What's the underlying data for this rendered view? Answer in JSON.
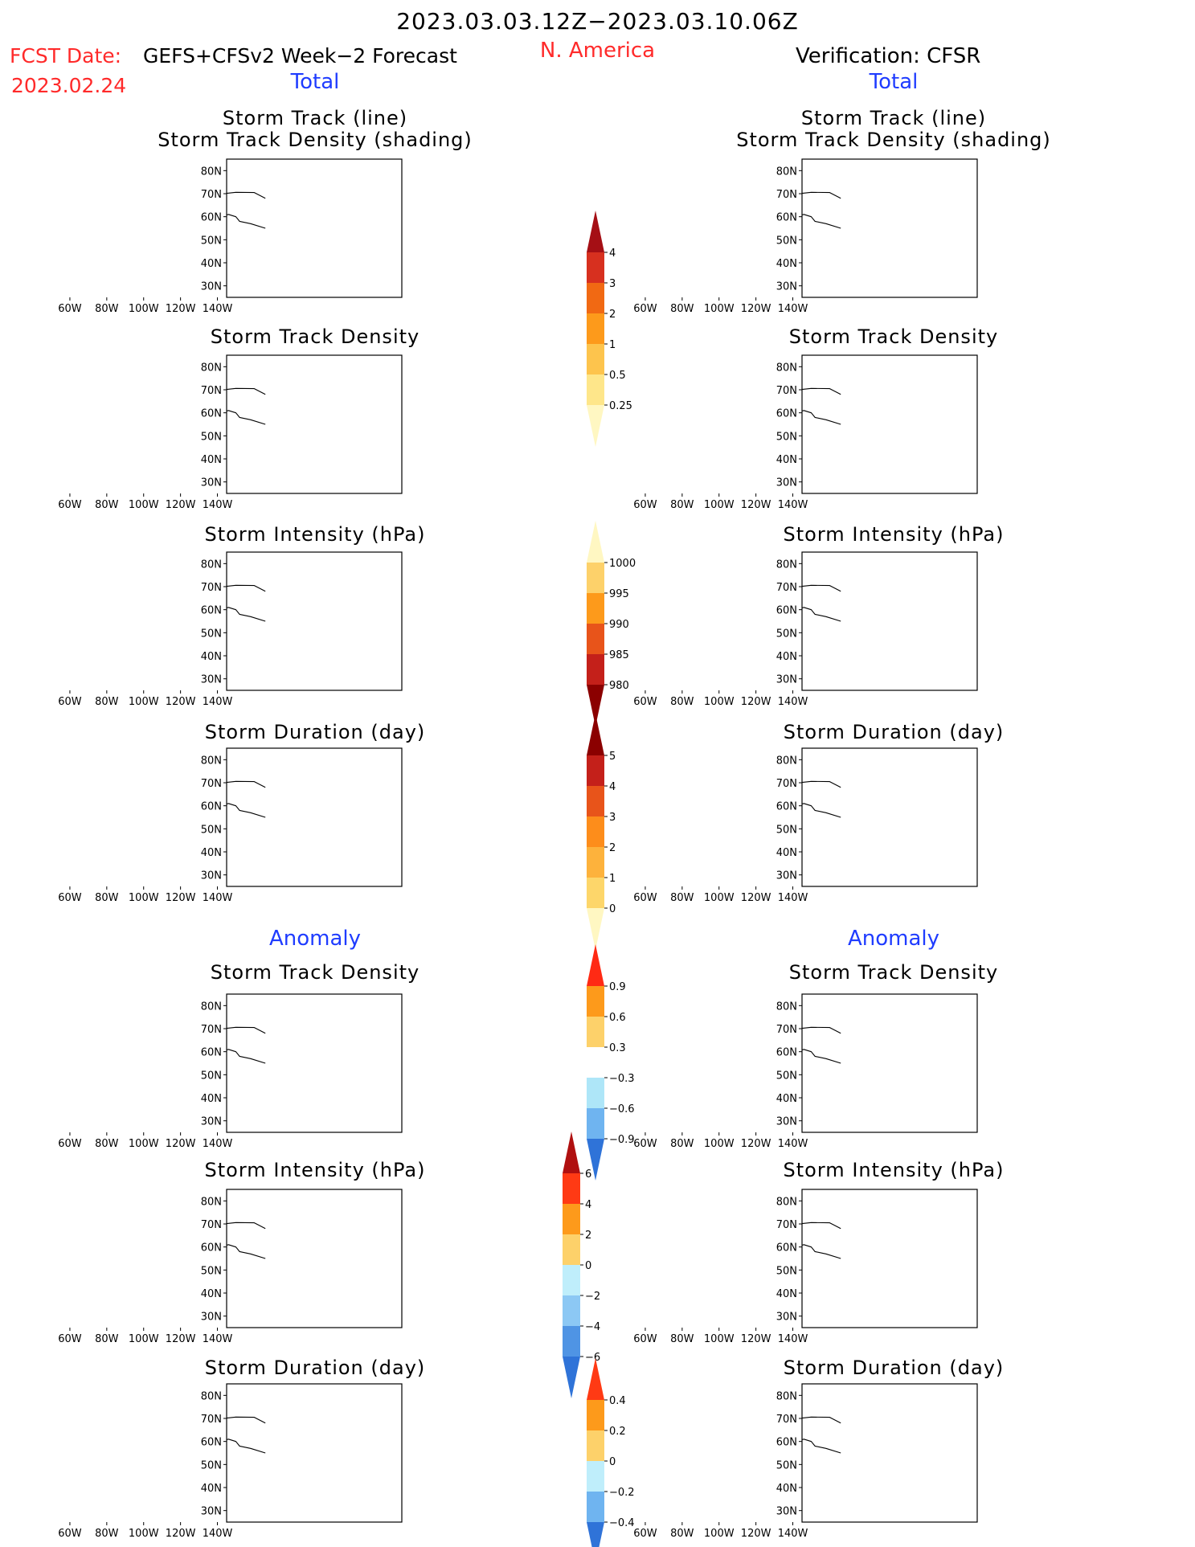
{
  "header": {
    "date_range": "2023.03.03.12Z−2023.03.10.06Z",
    "fcst_label": "FCST Date:",
    "fcst_desc": "GEFS+CFSv2 Week−2 Forecast",
    "fcst_date": "2023.02.24",
    "region": "N. America",
    "verification": "Verification: CFSR"
  },
  "sections": {
    "total": "Total",
    "anomaly": "Anomaly"
  },
  "axes": {
    "lat_labels": [
      "80N",
      "70N",
      "60N",
      "50N",
      "40N",
      "30N"
    ],
    "lon_labels": [
      "140W",
      "120W",
      "100W",
      "80W",
      "60W"
    ]
  },
  "panels": {
    "left": [
      {
        "title": "Storm Track (line)",
        "title2": "Storm Track Density (shading)",
        "field": "track_lines"
      },
      {
        "title": "Storm Track Density",
        "field": "density_fcst"
      },
      {
        "title": "Storm Intensity (hPa)",
        "field": "intensity_fcst"
      },
      {
        "title": "Storm Duration (day)",
        "field": "duration_fcst"
      },
      {
        "title": "Storm Track Density",
        "field": "density_anom_fcst"
      },
      {
        "title": "Storm Intensity (hPa)",
        "field": "intensity_anom_fcst"
      },
      {
        "title": "Storm Duration (day)",
        "field": "duration_anom_fcst"
      }
    ],
    "right": [
      {
        "title": "Storm Track (line)",
        "title2": "Storm Track Density (shading)",
        "field": "track_lines_obs"
      },
      {
        "title": "Storm Track Density",
        "field": "density_obs"
      },
      {
        "title": "Storm Intensity (hPa)",
        "field": "intensity_obs"
      },
      {
        "title": "Storm Duration (day)",
        "field": "duration_obs"
      },
      {
        "title": "Storm Track Density",
        "field": "density_anom_obs"
      },
      {
        "title": "Storm Intensity (hPa)",
        "field": "intensity_anom_obs"
      },
      {
        "title": "Storm Duration (day)",
        "field": "duration_anom_obs"
      }
    ]
  },
  "colorbars": {
    "density": {
      "labels": [
        "4",
        "3",
        "2",
        "1",
        "0.5",
        "0.25"
      ],
      "colors": [
        "#a50f15",
        "#d7301f",
        "#f16913",
        "#fd9a1b",
        "#fdc44d",
        "#fee68a",
        "#fff7c2"
      ]
    },
    "intensity": {
      "labels": [
        "1000",
        "995",
        "990",
        "985",
        "980"
      ],
      "colors": [
        "#fff7c2",
        "#fdd16a",
        "#fd9a1b",
        "#e8541a",
        "#c4201a",
        "#8b0000"
      ]
    },
    "duration": {
      "labels": [
        "5",
        "4",
        "3",
        "2",
        "1",
        "0"
      ],
      "colors": [
        "#8b0000",
        "#c4201a",
        "#e8541a",
        "#fd8d1b",
        "#fdb23c",
        "#fdd66a",
        "#fff7c2"
      ]
    },
    "density_anom": {
      "labels": [
        "0.9",
        "0.6",
        "0.3",
        "−0.3",
        "−0.6",
        "−0.9"
      ],
      "colors": [
        "#ff2a14",
        "#fd9a1b",
        "#fdd16a",
        "#ffffff",
        "#aee6f8",
        "#6fb4f0",
        "#2f73d8"
      ]
    },
    "intensity_anom": {
      "labels": [
        "6",
        "4",
        "2",
        "0",
        "−2",
        "−4",
        "−6"
      ],
      "colors": [
        "#b01010",
        "#ff3a14",
        "#fd9a1b",
        "#fdd16a",
        "#bfeefb",
        "#8cc8f4",
        "#4f94e4",
        "#2f73d8"
      ]
    },
    "duration_anom": {
      "labels": [
        "0.4",
        "0.2",
        "0",
        "−0.2",
        "−0.4"
      ],
      "colors": [
        "#ff3a14",
        "#fd9a1b",
        "#fdd16a",
        "#bfeefb",
        "#6fb4f0",
        "#2f73d8"
      ]
    }
  },
  "colors": {
    "water": "#ffffff",
    "land_outline": "#000000",
    "track_line": "#1ea0ff"
  }
}
